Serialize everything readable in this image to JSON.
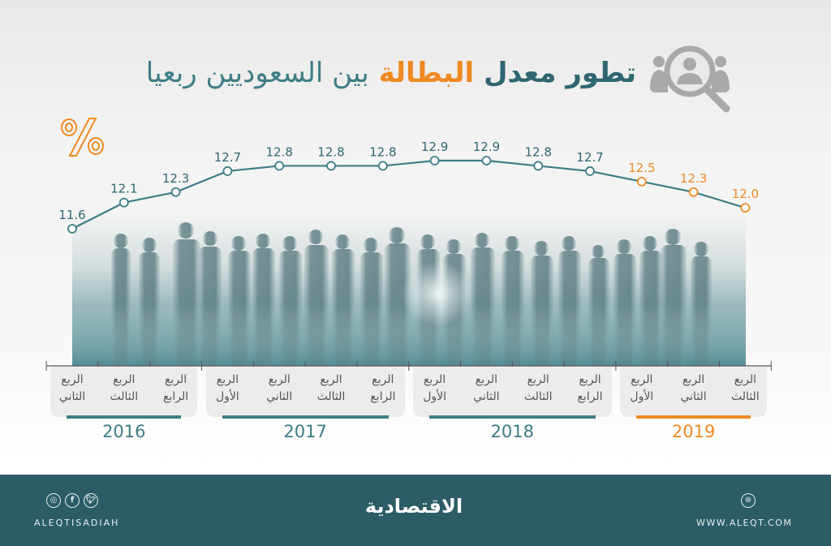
{
  "header": {
    "title_part1": "تطور معدل",
    "title_part2": "البطالة",
    "title_part3": "بين السعوديين ربعيا",
    "icon": "search-people-icon",
    "unit_symbol": "%"
  },
  "colors": {
    "teal_dark": "#2f6670",
    "teal": "#3f7d86",
    "orange": "#ef8a22",
    "footer_bg": "#2c5d67",
    "panel_bg": "#ececec"
  },
  "chart_data": {
    "type": "line",
    "title": "تطور معدل البطالة بين السعوديين ربعيا",
    "xlabel": "",
    "ylabel": "%",
    "categories": [
      "2016 الربع الثاني",
      "2016 الربع الثالث",
      "2016 الربع الرابع",
      "2017 الربع الأول",
      "2017 الربع الثاني",
      "2017 الربع الثالث",
      "2017 الربع الرابع",
      "2018 الربع الأول",
      "2018 الربع الثاني",
      "2018 الربع الثالث",
      "2018 الربع الرابع",
      "2019 الربع الأول",
      "2019 الربع الثاني",
      "2019 الربع الثالث"
    ],
    "series": [
      {
        "name": "معدل البطالة بين السعوديين",
        "values": [
          11.6,
          12.1,
          12.3,
          12.7,
          12.8,
          12.8,
          12.8,
          12.9,
          12.9,
          12.8,
          12.7,
          12.5,
          12.3,
          12.0
        ]
      }
    ],
    "value_labels": [
      "11.6",
      "12.1",
      "12.3",
      "12.7",
      "12.8",
      "12.8",
      "12.8",
      "12.9",
      "12.9",
      "12.8",
      "12.7",
      "12.5",
      "12.3",
      "12.0"
    ],
    "highlight_year": "2019",
    "grid": false,
    "legend": null
  },
  "axis": {
    "years": [
      {
        "label": "2016",
        "quarters": [
          "الربع الثاني",
          "الربع الثالث",
          "الربع الرابع"
        ]
      },
      {
        "label": "2017",
        "quarters": [
          "الربع الأول",
          "الربع الثاني",
          "الربع الثالث",
          "الربع الرابع"
        ]
      },
      {
        "label": "2018",
        "quarters": [
          "الربع الأول",
          "الربع الثاني",
          "الربع الثالث",
          "الربع الرابع"
        ]
      },
      {
        "label": "2019",
        "quarters": [
          "الربع الأول",
          "الربع الثاني",
          "الربع الثالث"
        ]
      }
    ]
  },
  "footer": {
    "social_icons": [
      "instagram-icon",
      "facebook-icon",
      "twitter-icon"
    ],
    "handle": "ALEQTISADIAH",
    "logo": "الاقتصادية",
    "web_icon": "globe-icon",
    "url": "WWW.ALEQT.COM"
  }
}
